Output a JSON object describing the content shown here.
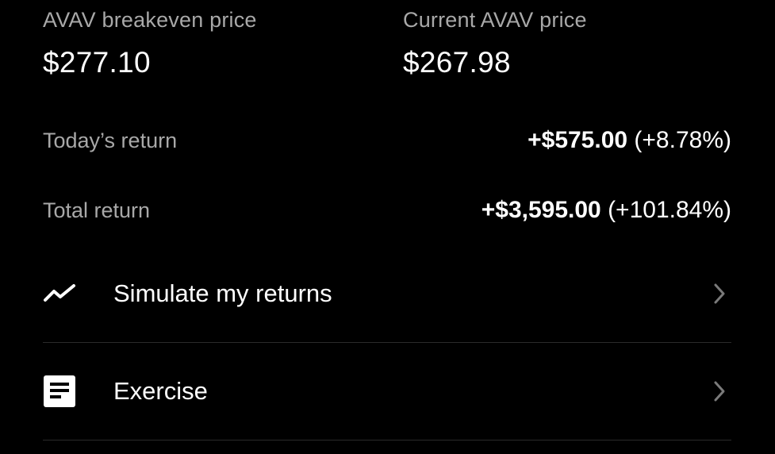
{
  "breakeven": {
    "label": "AVAV breakeven price",
    "value": "$277.10"
  },
  "current": {
    "label": "Current AVAV price",
    "value": "$267.98"
  },
  "todays_return": {
    "label": "Today’s return",
    "amount": "+$575.00",
    "percent": "(+8.78%)"
  },
  "total_return": {
    "label": "Total return",
    "amount": "+$3,595.00",
    "percent": "(+101.84%)"
  },
  "actions": [
    {
      "label": "Simulate my returns",
      "icon": "trend-line-icon"
    },
    {
      "label": "Exercise",
      "icon": "document-icon"
    }
  ],
  "colors": {
    "background": "#000000",
    "primary_text": "#ffffff",
    "secondary_text": "#a8a8a8",
    "divider": "#2a2a2a",
    "chevron": "#7a7a7a"
  }
}
